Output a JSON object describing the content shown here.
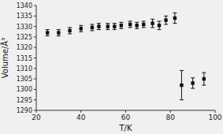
{
  "chart_data": {
    "type": "scatter",
    "xlabel": "T/K",
    "ylabel": "Volume/Å³",
    "x": [
      25,
      30,
      35,
      40,
      45,
      48,
      52,
      55,
      58,
      62,
      65,
      68,
      72,
      75,
      78,
      82,
      85,
      90,
      95
    ],
    "values": [
      1327,
      1327,
      1328,
      1329,
      1329.5,
      1330,
      1330,
      1330,
      1330.5,
      1331,
      1330.5,
      1331,
      1331.5,
      1330.5,
      1333,
      1334,
      1302,
      1303,
      1305
    ],
    "errors": [
      1.5,
      1.5,
      1.5,
      1.5,
      1.5,
      1.5,
      1.5,
      1.5,
      1.5,
      1.5,
      1.5,
      1.5,
      2.0,
      2.0,
      2.0,
      2.5,
      7.0,
      2.5,
      3.0
    ],
    "color": "#111111",
    "marker": "square",
    "xlim": [
      20,
      100
    ],
    "ylim": [
      1290,
      1340
    ],
    "xticks": [
      20,
      40,
      60,
      80,
      100
    ],
    "yticks": [
      1290,
      1295,
      1300,
      1305,
      1310,
      1315,
      1320,
      1325,
      1330,
      1335,
      1340
    ],
    "grid": false
  }
}
